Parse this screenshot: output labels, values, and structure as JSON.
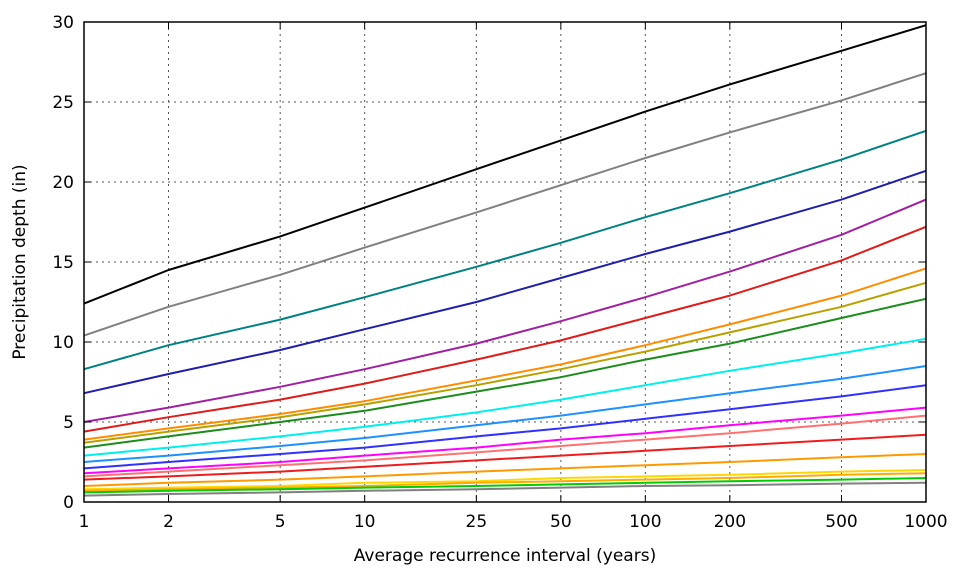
{
  "chart_data": {
    "type": "line",
    "xlabel": "Average recurrence interval (years)",
    "ylabel": "Precipitation depth (in)",
    "x_scale": "log",
    "x_ticks": [
      1,
      2,
      5,
      10,
      25,
      50,
      100,
      200,
      500,
      1000
    ],
    "x_tick_labels": [
      "1",
      "2",
      "5",
      "10",
      "25",
      "50",
      "100",
      "200",
      "500",
      "1000"
    ],
    "y_ticks": [
      0,
      5,
      10,
      15,
      20,
      25,
      30
    ],
    "y_tick_labels": [
      "0",
      "5",
      "10",
      "15",
      "20",
      "25",
      "30"
    ],
    "xlim": [
      1,
      1000
    ],
    "ylim": [
      0,
      30
    ],
    "grid": true,
    "x": [
      1,
      2,
      5,
      10,
      25,
      50,
      100,
      200,
      500,
      1000
    ],
    "series": [
      {
        "color": "#000000",
        "values": [
          12.4,
          14.5,
          16.6,
          18.4,
          20.8,
          22.6,
          24.4,
          26.1,
          28.2,
          29.8
        ]
      },
      {
        "color": "#808080",
        "values": [
          10.4,
          12.2,
          14.2,
          15.9,
          18.1,
          19.8,
          21.5,
          23.1,
          25.1,
          26.8
        ]
      },
      {
        "color": "#008080",
        "values": [
          8.3,
          9.8,
          11.4,
          12.8,
          14.7,
          16.2,
          17.8,
          19.3,
          21.4,
          23.2
        ]
      },
      {
        "color": "#1f1fa8",
        "values": [
          6.8,
          8.0,
          9.5,
          10.8,
          12.5,
          14.0,
          15.5,
          16.9,
          18.9,
          20.7
        ]
      },
      {
        "color": "#a020a0",
        "values": [
          5.0,
          5.9,
          7.2,
          8.3,
          9.9,
          11.3,
          12.8,
          14.4,
          16.7,
          18.9
        ]
      },
      {
        "color": "#dd1c1c",
        "values": [
          4.4,
          5.3,
          6.4,
          7.4,
          8.9,
          10.1,
          11.5,
          12.9,
          15.1,
          17.2
        ]
      },
      {
        "color": "#ff8c00",
        "values": [
          3.9,
          4.6,
          5.5,
          6.3,
          7.6,
          8.6,
          9.8,
          11.1,
          12.9,
          14.6
        ]
      },
      {
        "color": "#b8a000",
        "values": [
          3.7,
          4.4,
          5.3,
          6.1,
          7.3,
          8.3,
          9.4,
          10.6,
          12.2,
          13.7
        ]
      },
      {
        "color": "#1c8c1c",
        "values": [
          3.4,
          4.1,
          5.0,
          5.7,
          6.9,
          7.8,
          8.9,
          9.9,
          11.5,
          12.7
        ]
      },
      {
        "color": "#00eeee",
        "values": [
          2.9,
          3.4,
          4.1,
          4.7,
          5.6,
          6.4,
          7.3,
          8.2,
          9.3,
          10.2
        ]
      },
      {
        "color": "#1e90ff",
        "values": [
          2.5,
          2.9,
          3.5,
          4.0,
          4.8,
          5.4,
          6.1,
          6.8,
          7.7,
          8.5
        ]
      },
      {
        "color": "#3030ff",
        "values": [
          2.1,
          2.5,
          3.0,
          3.4,
          4.1,
          4.6,
          5.2,
          5.8,
          6.6,
          7.3
        ]
      },
      {
        "color": "#ff00ff",
        "values": [
          1.8,
          2.1,
          2.5,
          2.9,
          3.4,
          3.9,
          4.3,
          4.8,
          5.4,
          5.9
        ]
      },
      {
        "color": "#ff7070",
        "values": [
          1.6,
          1.9,
          2.3,
          2.6,
          3.1,
          3.5,
          3.9,
          4.3,
          4.9,
          5.4
        ]
      },
      {
        "color": "#ee1c1c",
        "values": [
          1.4,
          1.6,
          1.9,
          2.2,
          2.6,
          2.9,
          3.2,
          3.5,
          3.9,
          4.2
        ]
      },
      {
        "color": "#ff9900",
        "values": [
          1.0,
          1.2,
          1.4,
          1.6,
          1.9,
          2.1,
          2.3,
          2.5,
          2.8,
          3.0
        ]
      },
      {
        "color": "#ffd700",
        "values": [
          0.8,
          0.9,
          1.0,
          1.2,
          1.3,
          1.5,
          1.6,
          1.7,
          1.9,
          2.0
        ]
      },
      {
        "color": "#ffaa00",
        "values": [
          0.7,
          0.8,
          0.9,
          1.0,
          1.2,
          1.3,
          1.4,
          1.5,
          1.7,
          1.8
        ]
      },
      {
        "color": "#00cc00",
        "values": [
          0.6,
          0.7,
          0.8,
          0.9,
          1.0,
          1.1,
          1.2,
          1.3,
          1.4,
          1.5
        ]
      },
      {
        "color": "#808080",
        "values": [
          0.4,
          0.5,
          0.6,
          0.7,
          0.8,
          0.9,
          1.0,
          1.05,
          1.15,
          1.2
        ]
      }
    ]
  }
}
